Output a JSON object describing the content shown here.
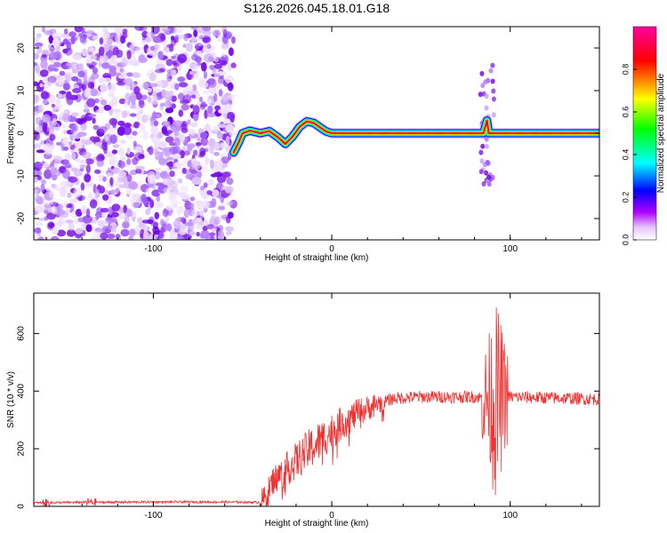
{
  "title": "S126.2026.045.18.01.G18",
  "chart_data": [
    {
      "type": "heatmap",
      "xlabel": "Height of straight line (km)",
      "ylabel": "Frequency (Hz)",
      "xlim": [
        -167,
        150
      ],
      "ylim": [
        -25,
        25
      ],
      "xticks": [
        "-100",
        "0",
        "100"
      ],
      "yticks": [
        "20",
        "10",
        "0",
        "-10",
        "-20"
      ],
      "colorbar": {
        "label": "Normalized spectral amplitude",
        "range": [
          0,
          1
        ],
        "ticks": [
          "0.0",
          "0.2",
          "0.4",
          "0.6",
          "0.8"
        ],
        "colors": [
          "#ffffff",
          "#b000ff",
          "#0000ff",
          "#00ffff",
          "#00ff00",
          "#ffff00",
          "#ff0000",
          "#ff00a0"
        ]
      },
      "noise_region_km": [
        -167,
        -55
      ],
      "ridge_points": [
        [
          -55,
          -4.5
        ],
        [
          -52,
          -2
        ],
        [
          -50,
          0
        ],
        [
          -46,
          0.6
        ],
        [
          -40,
          0
        ],
        [
          -35,
          0.5
        ],
        [
          -30,
          -1
        ],
        [
          -26,
          -2.5
        ],
        [
          -22,
          -0.8
        ],
        [
          -18,
          1.5
        ],
        [
          -14,
          2.8
        ],
        [
          -10,
          2.4
        ],
        [
          -6,
          1.2
        ],
        [
          -3,
          0.4
        ],
        [
          0,
          0
        ],
        [
          80,
          0
        ],
        [
          85,
          0
        ],
        [
          87,
          3
        ],
        [
          88,
          0
        ],
        [
          90,
          0
        ],
        [
          150,
          0
        ]
      ],
      "grid": false
    },
    {
      "type": "line",
      "xlabel": "Height of straight line (km)",
      "ylabel": "SNR (10 * v/v)",
      "xlim": [
        -167,
        150
      ],
      "ylim": [
        0,
        740
      ],
      "xticks": [
        "-100",
        "0",
        "100"
      ],
      "yticks": [
        "0",
        "200",
        "400",
        "600"
      ],
      "series": [
        {
          "color": "#ee3333",
          "profile": [
            [
              -167,
              12
            ],
            [
              -140,
              14
            ],
            [
              -100,
              15
            ],
            [
              -60,
              15
            ],
            [
              -40,
              14
            ],
            [
              -37,
              30
            ],
            [
              -33,
              90
            ],
            [
              -25,
              130
            ],
            [
              -15,
              185
            ],
            [
              -5,
              235
            ],
            [
              5,
              285
            ],
            [
              15,
              325
            ],
            [
              25,
              355
            ],
            [
              35,
              375
            ],
            [
              50,
              380
            ],
            [
              80,
              380
            ],
            [
              88,
              375
            ],
            [
              92,
              360
            ],
            [
              96,
              380
            ],
            [
              100,
              380
            ],
            [
              150,
              372
            ]
          ]
        }
      ],
      "grid": false
    }
  ]
}
